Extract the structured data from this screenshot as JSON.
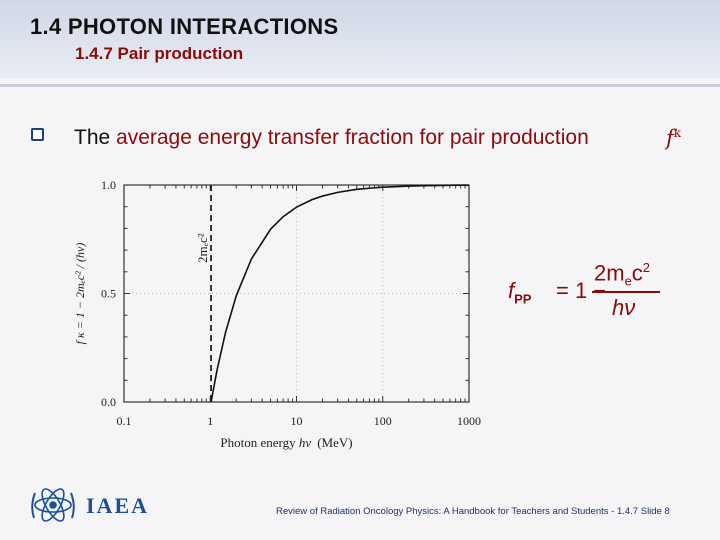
{
  "header": {
    "title": "1.4 PHOTON INTERACTIONS",
    "subtitle": "1.4.7 Pair production"
  },
  "bullet": {
    "text_prefix": "The ",
    "text_accent": "average energy transfer fraction for pair production",
    "symbol": "f",
    "symbol_sup": "κ"
  },
  "chart_data": {
    "type": "line",
    "xscale": "log",
    "xlim": [
      0.1,
      1000
    ],
    "ylim": [
      0.0,
      1.0
    ],
    "xticks": [
      "0.1",
      "1",
      "10",
      "100",
      "1000"
    ],
    "yticks": [
      "0.0",
      "0.5",
      "1.0"
    ],
    "xlabel_main": "Photon energy ",
    "xlabel_var": "hν",
    "xlabel_unit": "(MeV)",
    "ylabel": "f κ = 1 − 2mₑc² / (hν)",
    "threshold": {
      "x": 1.022,
      "label": "2mₑc²"
    },
    "series": [
      {
        "x": [
          1.022,
          1.2,
          1.5,
          2,
          3,
          5,
          7,
          10,
          15,
          20,
          30,
          50,
          70,
          100,
          150,
          200,
          300,
          500,
          700,
          1000
        ],
        "y": [
          0.0,
          0.148,
          0.319,
          0.489,
          0.659,
          0.796,
          0.854,
          0.898,
          0.932,
          0.949,
          0.966,
          0.98,
          0.985,
          0.99,
          0.993,
          0.995,
          0.997,
          0.998,
          0.999,
          0.999
        ]
      }
    ]
  },
  "formula": {
    "lhs": "f",
    "lhs_sub": "PP",
    "equals": "= 1 −",
    "num": "2m",
    "num_sub": "e",
    "num_rest": "c",
    "num_sup": "2",
    "den": "hν"
  },
  "footer": {
    "logo_text": "IAEA",
    "text": "Review of Radiation Oncology Physics: A Handbook for Teachers and Students - 1.4.7 Slide 8"
  },
  "colors": {
    "accent": "#8b0a0a",
    "logo": "#1c4f9a",
    "footer": "#1c2f6e"
  }
}
